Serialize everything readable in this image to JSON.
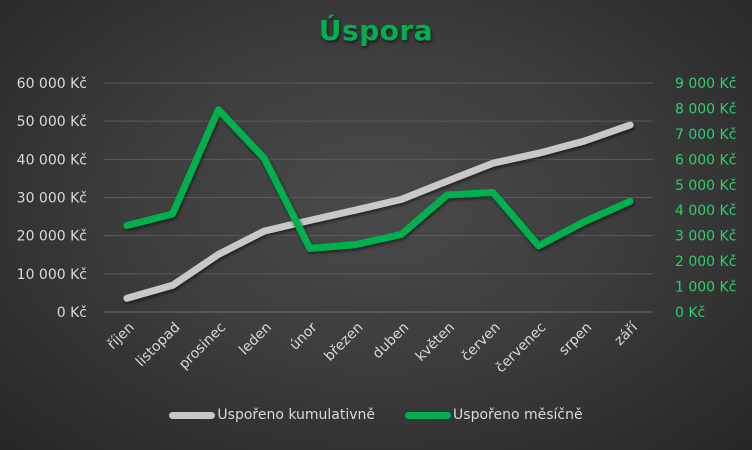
{
  "chart_data": {
    "type": "line",
    "title": "Úspora",
    "title_color": "#00b050",
    "categories": [
      "říjen",
      "listopad",
      "prosinec",
      "leden",
      "únor",
      "březen",
      "duben",
      "květen",
      "červen",
      "červenec",
      "srpen",
      "září"
    ],
    "series": [
      {
        "name": "Uspořeno kumulativně",
        "axis": "left",
        "color": "#c8c8c8",
        "values": [
          3600,
          7000,
          15100,
          21200,
          24000,
          26700,
          29500,
          34300,
          39000,
          41600,
          44800,
          49000
        ]
      },
      {
        "name": "Uspořeno měsíčně",
        "axis": "right",
        "color": "#00b050",
        "values": [
          3400,
          3850,
          7950,
          6050,
          2500,
          2650,
          3050,
          4600,
          4700,
          2600,
          3550,
          4350
        ]
      }
    ],
    "left_axis": {
      "ylim": [
        0,
        60000
      ],
      "ticks": [
        "0 Kč",
        "10 000 Kč",
        "20 000 Kč",
        "30 000 Kč",
        "40 000 Kč",
        "50 000 Kč",
        "60 000 Kč"
      ],
      "color": "#d9d9d9"
    },
    "right_axis": {
      "ylim": [
        0,
        9000
      ],
      "ticks": [
        "0 Kč",
        "1 000 Kč",
        "2 000 Kč",
        "3 000 Kč",
        "4 000 Kč",
        "5 000 Kč",
        "6 000 Kč",
        "7 000 Kč",
        "8 000 Kč",
        "9 000 Kč"
      ],
      "color": "#2ecc71"
    },
    "xlabel": "",
    "ylabel": "",
    "grid": true,
    "legend_position": "bottom"
  }
}
